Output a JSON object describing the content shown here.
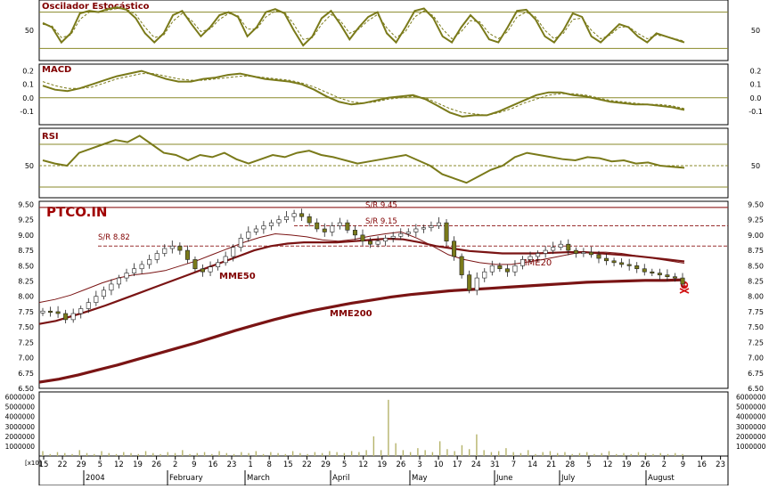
{
  "chart_data": [
    {
      "type": "line",
      "title": "Oscilador Estocástico",
      "ylim": [
        0,
        100
      ],
      "yticks": [
        "50"
      ],
      "reference_levels": [
        20,
        80
      ],
      "series": [
        {
          "values": [
            62,
            55,
            30,
            45,
            78,
            82,
            80,
            85,
            88,
            84,
            70,
            45,
            30,
            45,
            75,
            82,
            60,
            40,
            55,
            75,
            80,
            72,
            40,
            55,
            80,
            85,
            78,
            50,
            25,
            40,
            70,
            82,
            60,
            35,
            55,
            72,
            80,
            45,
            30,
            55,
            82,
            86,
            70,
            40,
            30,
            55,
            75,
            60,
            35,
            30,
            55,
            82,
            84,
            68,
            40,
            30,
            50,
            78,
            72,
            40,
            30,
            45,
            60,
            55,
            40,
            30,
            45,
            40,
            35,
            30
          ]
        },
        {
          "values": [
            60,
            57,
            38,
            42,
            68,
            80,
            81,
            83,
            86,
            85,
            76,
            55,
            38,
            42,
            65,
            78,
            66,
            48,
            52,
            68,
            78,
            74,
            52,
            52,
            72,
            82,
            80,
            60,
            35,
            38,
            60,
            76,
            66,
            45,
            52,
            66,
            76,
            54,
            38,
            48,
            72,
            82,
            74,
            52,
            36,
            48,
            66,
            64,
            45,
            36,
            48,
            72,
            80,
            72,
            50,
            36,
            45,
            68,
            70,
            50,
            36,
            42,
            55,
            56,
            45,
            36,
            42,
            40,
            36,
            32
          ]
        }
      ]
    },
    {
      "type": "line",
      "title": "MACD",
      "ylim": [
        -0.2,
        0.25
      ],
      "yticks": [
        "0.2",
        "0.1",
        "0.0",
        "-0.1"
      ],
      "reference_levels": [
        0.0
      ],
      "series": [
        {
          "values": [
            0.09,
            0.06,
            0.05,
            0.07,
            0.1,
            0.13,
            0.16,
            0.18,
            0.2,
            0.17,
            0.14,
            0.12,
            0.12,
            0.14,
            0.15,
            0.17,
            0.18,
            0.16,
            0.14,
            0.13,
            0.12,
            0.1,
            0.06,
            0.01,
            -0.03,
            -0.05,
            -0.04,
            -0.02,
            0.0,
            0.01,
            0.02,
            -0.01,
            -0.06,
            -0.11,
            -0.14,
            -0.13,
            -0.13,
            -0.1,
            -0.06,
            -0.02,
            0.02,
            0.04,
            0.04,
            0.02,
            0.01,
            -0.01,
            -0.03,
            -0.04,
            -0.05,
            -0.05,
            -0.06,
            -0.07,
            -0.09
          ]
        },
        {
          "values": [
            0.12,
            0.09,
            0.07,
            0.07,
            0.08,
            0.11,
            0.14,
            0.16,
            0.18,
            0.18,
            0.16,
            0.14,
            0.13,
            0.13,
            0.14,
            0.15,
            0.16,
            0.16,
            0.15,
            0.14,
            0.13,
            0.11,
            0.08,
            0.04,
            0.0,
            -0.03,
            -0.04,
            -0.03,
            -0.01,
            0.0,
            0.01,
            0.0,
            -0.04,
            -0.08,
            -0.11,
            -0.12,
            -0.13,
            -0.11,
            -0.08,
            -0.04,
            -0.01,
            0.02,
            0.03,
            0.03,
            0.02,
            0.0,
            -0.02,
            -0.03,
            -0.04,
            -0.05,
            -0.05,
            -0.06,
            -0.08
          ]
        }
      ]
    },
    {
      "type": "line",
      "title": "RSI",
      "ylim": [
        20,
        85
      ],
      "yticks": [
        "50"
      ],
      "reference_levels": [
        30,
        50,
        70
      ],
      "series": [
        {
          "values": [
            55,
            52,
            50,
            62,
            66,
            70,
            74,
            72,
            78,
            70,
            62,
            60,
            55,
            60,
            58,
            62,
            56,
            52,
            56,
            60,
            58,
            62,
            64,
            60,
            58,
            55,
            52,
            54,
            56,
            58,
            60,
            55,
            50,
            42,
            38,
            34,
            40,
            46,
            50,
            58,
            62,
            60,
            58,
            56,
            55,
            58,
            57,
            54,
            55,
            52,
            53,
            50,
            49,
            48
          ]
        }
      ]
    },
    {
      "type": "candlestick",
      "title": "PTCO.IN",
      "ylim": [
        6.5,
        9.55
      ],
      "yticks": [
        "9.50",
        "9.25",
        "9.00",
        "8.75",
        "8.50",
        "8.25",
        "8.00",
        "7.75",
        "7.50",
        "7.25",
        "7.00",
        "6.75",
        "6.50"
      ],
      "xticks": [
        "15",
        "22",
        "29",
        "5",
        "12",
        "19",
        "26",
        "2",
        "9",
        "16",
        "23",
        "1",
        "8",
        "15",
        "22",
        "29",
        "5",
        "12",
        "19",
        "26",
        "3",
        "10",
        "17",
        "24",
        "31",
        "7",
        "14",
        "21",
        "28",
        "5",
        "12",
        "19",
        "26",
        "2",
        "9",
        "16",
        "23"
      ],
      "month_labels": [
        "2004",
        "February",
        "March",
        "April",
        "May",
        "June",
        "July",
        "August"
      ],
      "annotations": [
        "S/R 9.45",
        "S/R 9.15",
        "S/R 8.82",
        "MME50",
        "MME200",
        "MME20"
      ],
      "reference_levels": [
        9.45,
        9.15,
        8.82
      ],
      "close": [
        7.76,
        7.75,
        7.72,
        7.62,
        7.72,
        7.8,
        7.9,
        8.0,
        8.1,
        8.2,
        8.3,
        8.38,
        8.45,
        8.52,
        8.6,
        8.7,
        8.78,
        8.82,
        8.75,
        8.6,
        8.45,
        8.4,
        8.48,
        8.55,
        8.65,
        8.8,
        8.95,
        9.05,
        9.1,
        9.15,
        9.2,
        9.25,
        9.3,
        9.35,
        9.3,
        9.2,
        9.1,
        9.05,
        9.15,
        9.2,
        9.08,
        9.0,
        8.9,
        8.85,
        8.9,
        8.95,
        8.98,
        9.02,
        9.05,
        9.1,
        9.12,
        9.15,
        9.2,
        8.9,
        8.65,
        8.35,
        8.1,
        8.3,
        8.4,
        8.5,
        8.45,
        8.4,
        8.5,
        8.6,
        8.65,
        8.7,
        8.75,
        8.8,
        8.85,
        8.75,
        8.7,
        8.72,
        8.68,
        8.62,
        8.58,
        8.55,
        8.52,
        8.5,
        8.45,
        8.4,
        8.38,
        8.35,
        8.32,
        8.3,
        8.2
      ],
      "series": [
        {
          "name": "MME20",
          "values": [
            7.9,
            7.95,
            8.02,
            8.12,
            8.22,
            8.3,
            8.35,
            8.38,
            8.42,
            8.5,
            8.58,
            8.68,
            8.78,
            8.88,
            8.96,
            9.02,
            9.0,
            8.97,
            8.92,
            8.9,
            8.93,
            8.98,
            9.02,
            9.05,
            8.95,
            8.82,
            8.68,
            8.6,
            8.55,
            8.52,
            8.52,
            8.56,
            8.6,
            8.65,
            8.7,
            8.72,
            8.72,
            8.7,
            8.66,
            8.62,
            8.58,
            8.54
          ]
        },
        {
          "name": "MME50",
          "values": [
            7.55,
            7.6,
            7.68,
            7.76,
            7.85,
            7.95,
            8.05,
            8.15,
            8.25,
            8.35,
            8.45,
            8.55,
            8.65,
            8.75,
            8.82,
            8.86,
            8.88,
            8.88,
            8.88,
            8.9,
            8.92,
            8.94,
            8.93,
            8.88,
            8.82,
            8.78,
            8.74,
            8.72,
            8.7,
            8.7,
            8.7,
            8.71,
            8.72,
            8.72,
            8.7,
            8.68,
            8.66,
            8.63,
            8.6,
            8.57
          ]
        },
        {
          "name": "MME200",
          "values": [
            6.6,
            6.65,
            6.72,
            6.8,
            6.88,
            6.97,
            7.06,
            7.15,
            7.24,
            7.34,
            7.44,
            7.53,
            7.62,
            7.7,
            7.77,
            7.83,
            7.89,
            7.94,
            7.99,
            8.03,
            8.06,
            8.09,
            8.11,
            8.13,
            8.15,
            8.17,
            8.19,
            8.21,
            8.23,
            8.24,
            8.25,
            8.26,
            8.26,
            8.27
          ]
        }
      ]
    },
    {
      "type": "bar",
      "title": "",
      "ylabel": "[x10]",
      "yticks": [
        "6000000",
        "5000000",
        "4000000",
        "3000000",
        "2000000",
        "1000000"
      ],
      "ylim": [
        0,
        6500000
      ],
      "values": [
        500000,
        200000,
        400000,
        300000,
        200000,
        600000,
        300000,
        200000,
        500000,
        300000,
        200000,
        400000,
        300000,
        200000,
        500000,
        300000,
        200000,
        400000,
        300000,
        600000,
        200000,
        300000,
        400000,
        200000,
        500000,
        300000,
        200000,
        400000,
        300000,
        500000,
        200000,
        400000,
        300000,
        200000,
        500000,
        300000,
        200000,
        400000,
        300000,
        500000,
        400000,
        300000,
        500000,
        400000,
        600000,
        2000000,
        600000,
        5700000,
        1300000,
        600000,
        400000,
        800000,
        600000,
        400000,
        1500000,
        700000,
        500000,
        1100000,
        700000,
        2200000,
        600000,
        400000,
        500000,
        800000,
        400000,
        300000,
        600000,
        200000,
        400000,
        500000,
        300000,
        400000,
        200000,
        300000,
        400000,
        200000,
        300000,
        500000,
        200000,
        300000,
        200000,
        400000,
        300000,
        200000,
        300000,
        200000,
        300000,
        200000
      ]
    }
  ],
  "ui": {
    "stoch_title": "Oscilador Estocástico",
    "macd_title": "MACD",
    "rsi_title": "RSI",
    "ticker": "PTCO.IN",
    "sr_945": "S/R 9.45",
    "sr_915": "S/R 9.15",
    "sr_882": "S/R 8.82",
    "mme50_label": "MME50",
    "mme200_label": "MME200",
    "mme20_label": "MME20",
    "volume_unit": "[x10]"
  },
  "colors": {
    "olive": "#7a7a1a",
    "olive_light": "#b5b36a",
    "maroon": "#800000",
    "ma_dark": "#7a1414",
    "ref_line": "#8a8a2a",
    "sr_line": "#9a3030",
    "grid_line": "#cfcf9a",
    "axis": "#000000",
    "ticker_red": "#a00000"
  }
}
